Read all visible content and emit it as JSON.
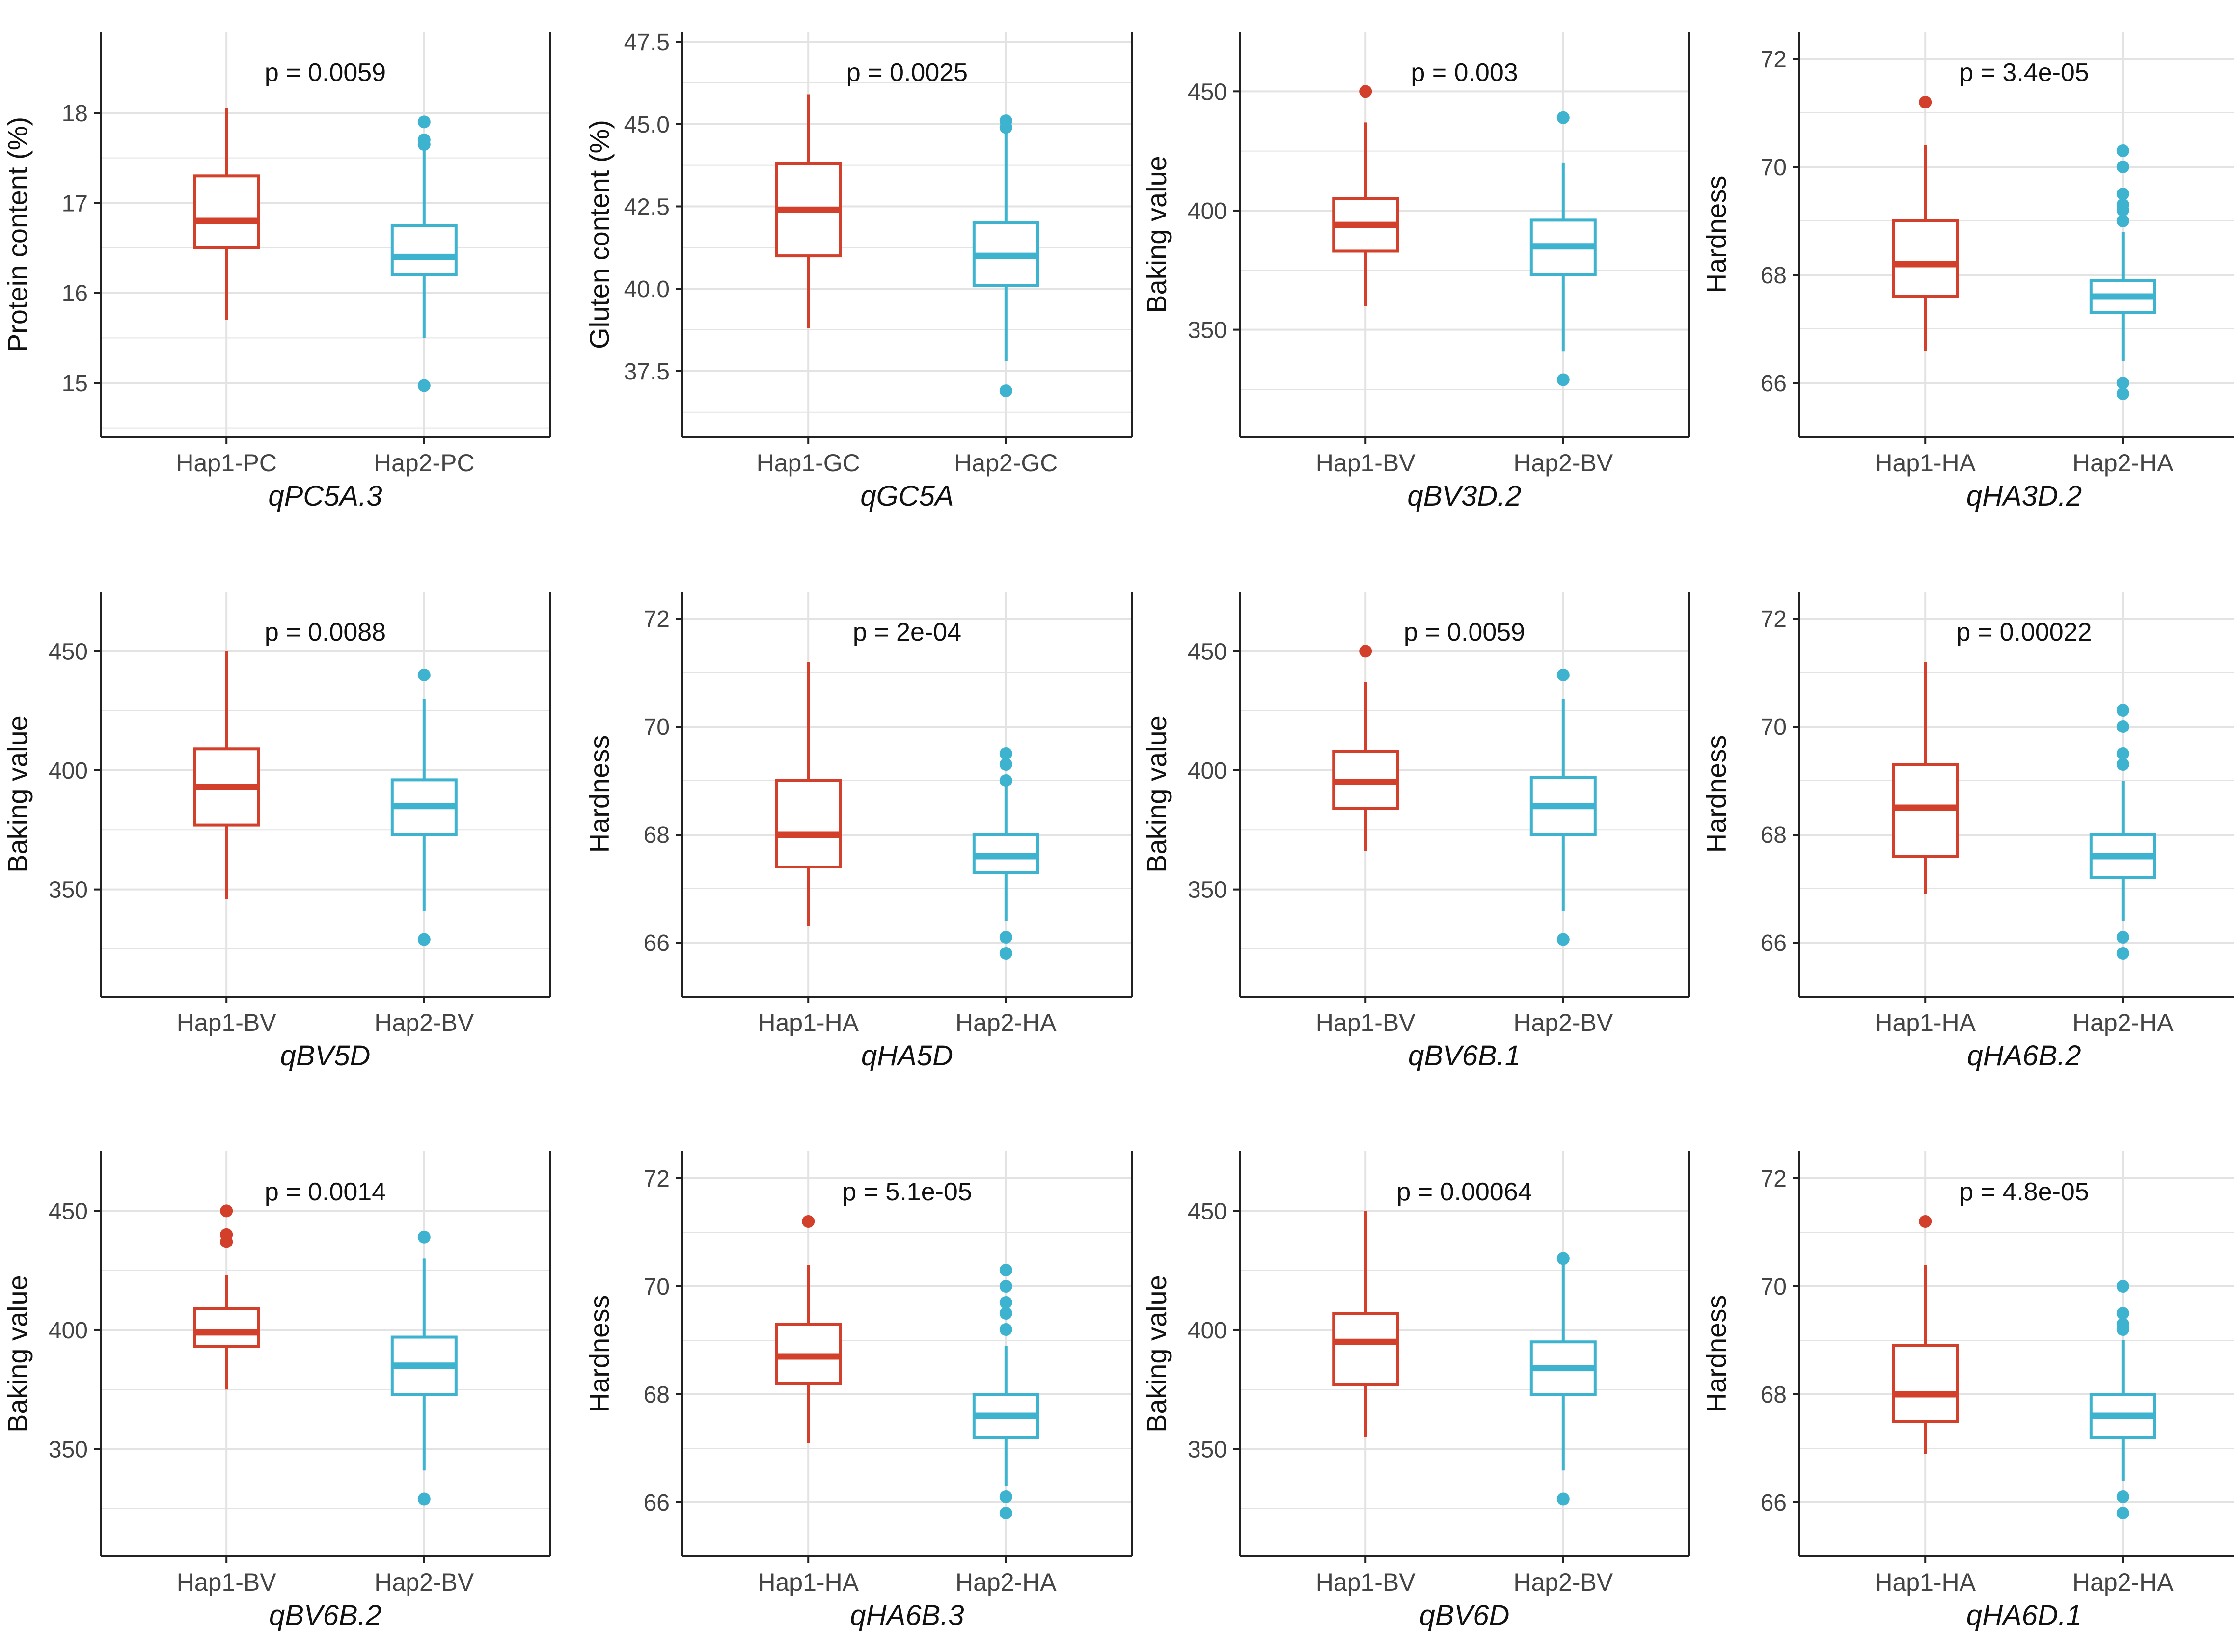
{
  "colors": {
    "hap1": "#d2402b",
    "hap2": "#3db3cf",
    "grid": "#e3e3e3",
    "axis": "#222222",
    "text": "#111111",
    "tick": "#444444"
  },
  "chart_data": [
    {
      "type": "boxplot",
      "ylabel": "Protein content (%)",
      "xlabel": "qPC5A.3",
      "pvalue": "p = 0.0059",
      "ylim": [
        14.4,
        18.9
      ],
      "yticks": [
        {
          "value": 15,
          "label": "15"
        },
        {
          "value": 16,
          "label": "16"
        },
        {
          "value": 17,
          "label": "17"
        },
        {
          "value": 18,
          "label": "18"
        }
      ],
      "categories": [
        "Hap1-PC",
        "Hap2-PC"
      ],
      "groups": [
        {
          "name": "Hap1-PC",
          "min": 15.7,
          "q1": 16.5,
          "median": 16.8,
          "q3": 17.3,
          "max": 18.05,
          "outliers": []
        },
        {
          "name": "Hap2-PC",
          "min": 15.5,
          "q1": 16.2,
          "median": 16.4,
          "q3": 16.75,
          "max": 17.6,
          "outliers": [
            17.65,
            17.7,
            17.9,
            14.97
          ]
        }
      ]
    },
    {
      "type": "boxplot",
      "ylabel": "Gluten content (%)",
      "xlabel": "qGC5A",
      "pvalue": "p = 0.0025",
      "ylim": [
        35.5,
        47.8
      ],
      "yticks": [
        {
          "value": 37.5,
          "label": "37.5"
        },
        {
          "value": 40,
          "label": "40.0"
        },
        {
          "value": 42.5,
          "label": "42.5"
        },
        {
          "value": 45,
          "label": "45.0"
        },
        {
          "value": 47.5,
          "label": "47.5"
        }
      ],
      "categories": [
        "Hap1-GC",
        "Hap2-GC"
      ],
      "groups": [
        {
          "name": "Hap1-GC",
          "min": 38.8,
          "q1": 41.0,
          "median": 42.4,
          "q3": 43.8,
          "max": 45.9,
          "outliers": []
        },
        {
          "name": "Hap2-GC",
          "min": 37.8,
          "q1": 40.1,
          "median": 41.0,
          "q3": 42.0,
          "max": 44.8,
          "outliers": [
            44.9,
            45.1,
            36.9
          ]
        }
      ]
    },
    {
      "type": "boxplot",
      "ylabel": "Baking value",
      "xlabel": "qBV3D.2",
      "pvalue": "p = 0.003",
      "ylim": [
        305,
        475
      ],
      "yticks": [
        {
          "value": 350,
          "label": "350"
        },
        {
          "value": 400,
          "label": "400"
        },
        {
          "value": 450,
          "label": "450"
        }
      ],
      "categories": [
        "Hap1-BV",
        "Hap2-BV"
      ],
      "groups": [
        {
          "name": "Hap1-BV",
          "min": 360,
          "q1": 383,
          "median": 394,
          "q3": 405,
          "max": 437,
          "outliers": [
            450
          ]
        },
        {
          "name": "Hap2-BV",
          "min": 341,
          "q1": 373,
          "median": 385,
          "q3": 396,
          "max": 420,
          "outliers": [
            439,
            329
          ]
        }
      ]
    },
    {
      "type": "boxplot",
      "ylabel": "Hardness",
      "xlabel": "qHA3D.2",
      "pvalue": "p = 3.4e-05",
      "ylim": [
        65.0,
        72.5
      ],
      "yticks": [
        {
          "value": 66,
          "label": "66"
        },
        {
          "value": 68,
          "label": "68"
        },
        {
          "value": 70,
          "label": "70"
        },
        {
          "value": 72,
          "label": "72"
        }
      ],
      "categories": [
        "Hap1-HA",
        "Hap2-HA"
      ],
      "groups": [
        {
          "name": "Hap1-HA",
          "min": 66.6,
          "q1": 67.6,
          "median": 68.2,
          "q3": 69.0,
          "max": 70.4,
          "outliers": [
            71.2
          ]
        },
        {
          "name": "Hap2-HA",
          "min": 66.4,
          "q1": 67.3,
          "median": 67.6,
          "q3": 67.9,
          "max": 68.8,
          "outliers": [
            69.0,
            69.2,
            69.3,
            69.5,
            70.0,
            70.3,
            66.0,
            65.8
          ]
        }
      ]
    },
    {
      "type": "boxplot",
      "ylabel": "Baking value",
      "xlabel": "qBV5D",
      "pvalue": "p = 0.0088",
      "ylim": [
        305,
        475
      ],
      "yticks": [
        {
          "value": 350,
          "label": "350"
        },
        {
          "value": 400,
          "label": "400"
        },
        {
          "value": 450,
          "label": "450"
        }
      ],
      "categories": [
        "Hap1-BV",
        "Hap2-BV"
      ],
      "groups": [
        {
          "name": "Hap1-BV",
          "min": 346,
          "q1": 377,
          "median": 393,
          "q3": 409,
          "max": 450,
          "outliers": []
        },
        {
          "name": "Hap2-BV",
          "min": 341,
          "q1": 373,
          "median": 385,
          "q3": 396,
          "max": 430,
          "outliers": [
            440,
            329
          ]
        }
      ]
    },
    {
      "type": "boxplot",
      "ylabel": "Hardness",
      "xlabel": "qHA5D",
      "pvalue": "p = 2e-04",
      "ylim": [
        65.0,
        72.5
      ],
      "yticks": [
        {
          "value": 66,
          "label": "66"
        },
        {
          "value": 68,
          "label": "68"
        },
        {
          "value": 70,
          "label": "70"
        },
        {
          "value": 72,
          "label": "72"
        }
      ],
      "categories": [
        "Hap1-HA",
        "Hap2-HA"
      ],
      "groups": [
        {
          "name": "Hap1-HA",
          "min": 66.3,
          "q1": 67.4,
          "median": 68.0,
          "q3": 69.0,
          "max": 71.2,
          "outliers": []
        },
        {
          "name": "Hap2-HA",
          "min": 66.4,
          "q1": 67.3,
          "median": 67.6,
          "q3": 68.0,
          "max": 68.9,
          "outliers": [
            69.0,
            69.3,
            69.5,
            66.1,
            65.8
          ]
        }
      ]
    },
    {
      "type": "boxplot",
      "ylabel": "Baking value",
      "xlabel": "qBV6B.1",
      "pvalue": "p = 0.0059",
      "ylim": [
        305,
        475
      ],
      "yticks": [
        {
          "value": 350,
          "label": "350"
        },
        {
          "value": 400,
          "label": "400"
        },
        {
          "value": 450,
          "label": "450"
        }
      ],
      "categories": [
        "Hap1-BV",
        "Hap2-BV"
      ],
      "groups": [
        {
          "name": "Hap1-BV",
          "min": 366,
          "q1": 384,
          "median": 395,
          "q3": 408,
          "max": 437,
          "outliers": [
            450
          ]
        },
        {
          "name": "Hap2-BV",
          "min": 341,
          "q1": 373,
          "median": 385,
          "q3": 397,
          "max": 430,
          "outliers": [
            440,
            329
          ]
        }
      ]
    },
    {
      "type": "boxplot",
      "ylabel": "Hardness",
      "xlabel": "qHA6B.2",
      "pvalue": "p = 0.00022",
      "ylim": [
        65.0,
        72.5
      ],
      "yticks": [
        {
          "value": 66,
          "label": "66"
        },
        {
          "value": 68,
          "label": "68"
        },
        {
          "value": 70,
          "label": "70"
        },
        {
          "value": 72,
          "label": "72"
        }
      ],
      "categories": [
        "Hap1-HA",
        "Hap2-HA"
      ],
      "groups": [
        {
          "name": "Hap1-HA",
          "min": 66.9,
          "q1": 67.6,
          "median": 68.5,
          "q3": 69.3,
          "max": 71.2,
          "outliers": []
        },
        {
          "name": "Hap2-HA",
          "min": 66.4,
          "q1": 67.2,
          "median": 67.6,
          "q3": 68.0,
          "max": 69.0,
          "outliers": [
            69.3,
            69.5,
            70.0,
            70.3,
            66.1,
            65.8
          ]
        }
      ]
    },
    {
      "type": "boxplot",
      "ylabel": "Baking value",
      "xlabel": "qBV6B.2",
      "pvalue": "p = 0.0014",
      "ylim": [
        305,
        475
      ],
      "yticks": [
        {
          "value": 350,
          "label": "350"
        },
        {
          "value": 400,
          "label": "400"
        },
        {
          "value": 450,
          "label": "450"
        }
      ],
      "categories": [
        "Hap1-BV",
        "Hap2-BV"
      ],
      "groups": [
        {
          "name": "Hap1-BV",
          "min": 375,
          "q1": 393,
          "median": 399,
          "q3": 409,
          "max": 423,
          "outliers": [
            437,
            440,
            450
          ]
        },
        {
          "name": "Hap2-BV",
          "min": 341,
          "q1": 373,
          "median": 385,
          "q3": 397,
          "max": 430,
          "outliers": [
            439,
            329
          ]
        }
      ]
    },
    {
      "type": "boxplot",
      "ylabel": "Hardness",
      "xlabel": "qHA6B.3",
      "pvalue": "p = 5.1e-05",
      "ylim": [
        65.0,
        72.5
      ],
      "yticks": [
        {
          "value": 66,
          "label": "66"
        },
        {
          "value": 68,
          "label": "68"
        },
        {
          "value": 70,
          "label": "70"
        },
        {
          "value": 72,
          "label": "72"
        }
      ],
      "categories": [
        "Hap1-HA",
        "Hap2-HA"
      ],
      "groups": [
        {
          "name": "Hap1-HA",
          "min": 67.1,
          "q1": 68.2,
          "median": 68.7,
          "q3": 69.3,
          "max": 70.4,
          "outliers": [
            71.2
          ]
        },
        {
          "name": "Hap2-HA",
          "min": 66.3,
          "q1": 67.2,
          "median": 67.6,
          "q3": 68.0,
          "max": 68.9,
          "outliers": [
            69.2,
            69.5,
            69.7,
            70.0,
            70.3,
            66.1,
            65.8
          ]
        }
      ]
    },
    {
      "type": "boxplot",
      "ylabel": "Baking value",
      "xlabel": "qBV6D",
      "pvalue": "p = 0.00064",
      "ylim": [
        305,
        475
      ],
      "yticks": [
        {
          "value": 350,
          "label": "350"
        },
        {
          "value": 400,
          "label": "400"
        },
        {
          "value": 450,
          "label": "450"
        }
      ],
      "categories": [
        "Hap1-BV",
        "Hap2-BV"
      ],
      "groups": [
        {
          "name": "Hap1-BV",
          "min": 355,
          "q1": 377,
          "median": 395,
          "q3": 407,
          "max": 450,
          "outliers": []
        },
        {
          "name": "Hap2-BV",
          "min": 341,
          "q1": 373,
          "median": 384,
          "q3": 395,
          "max": 428,
          "outliers": [
            430,
            329
          ]
        }
      ]
    },
    {
      "type": "boxplot",
      "ylabel": "Hardness",
      "xlabel": "qHA6D.1",
      "pvalue": "p = 4.8e-05",
      "ylim": [
        65.0,
        72.5
      ],
      "yticks": [
        {
          "value": 66,
          "label": "66"
        },
        {
          "value": 68,
          "label": "68"
        },
        {
          "value": 70,
          "label": "70"
        },
        {
          "value": 72,
          "label": "72"
        }
      ],
      "categories": [
        "Hap1-HA",
        "Hap2-HA"
      ],
      "groups": [
        {
          "name": "Hap1-HA",
          "min": 66.9,
          "q1": 67.5,
          "median": 68.0,
          "q3": 68.9,
          "max": 70.4,
          "outliers": [
            71.2
          ]
        },
        {
          "name": "Hap2-HA",
          "min": 66.4,
          "q1": 67.2,
          "median": 67.6,
          "q3": 68.0,
          "max": 69.0,
          "outliers": [
            69.2,
            69.3,
            69.5,
            70.0,
            66.1,
            65.8
          ]
        }
      ]
    }
  ]
}
